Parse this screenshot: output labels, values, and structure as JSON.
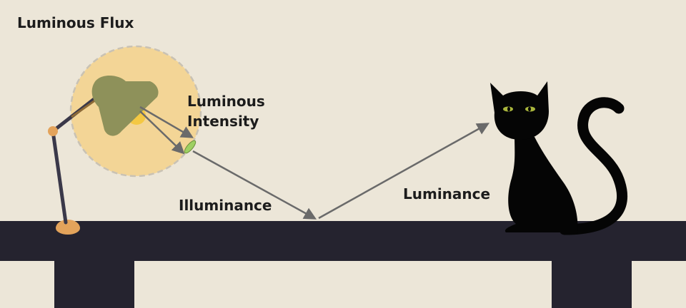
{
  "labels": {
    "luminous_flux": "Luminous Flux",
    "luminous_intensity_line1": "Luminous",
    "luminous_intensity_line2": "Intensity",
    "illuminance": "Illuminance",
    "luminance": "Luminance"
  },
  "colors": {
    "background": "#ece6d8",
    "table": "#25232f",
    "lamp_shade": "#8e915a",
    "lamp_joint": "#e3a35b",
    "lamp_arm": "#3a3849",
    "flux_glow": "#f3d596",
    "bulb": "#f4c843",
    "arrow": "#6a6a6a",
    "surface_patch": "#9ed062",
    "cat": "#050505",
    "cat_eyes": "#a9b53c"
  }
}
